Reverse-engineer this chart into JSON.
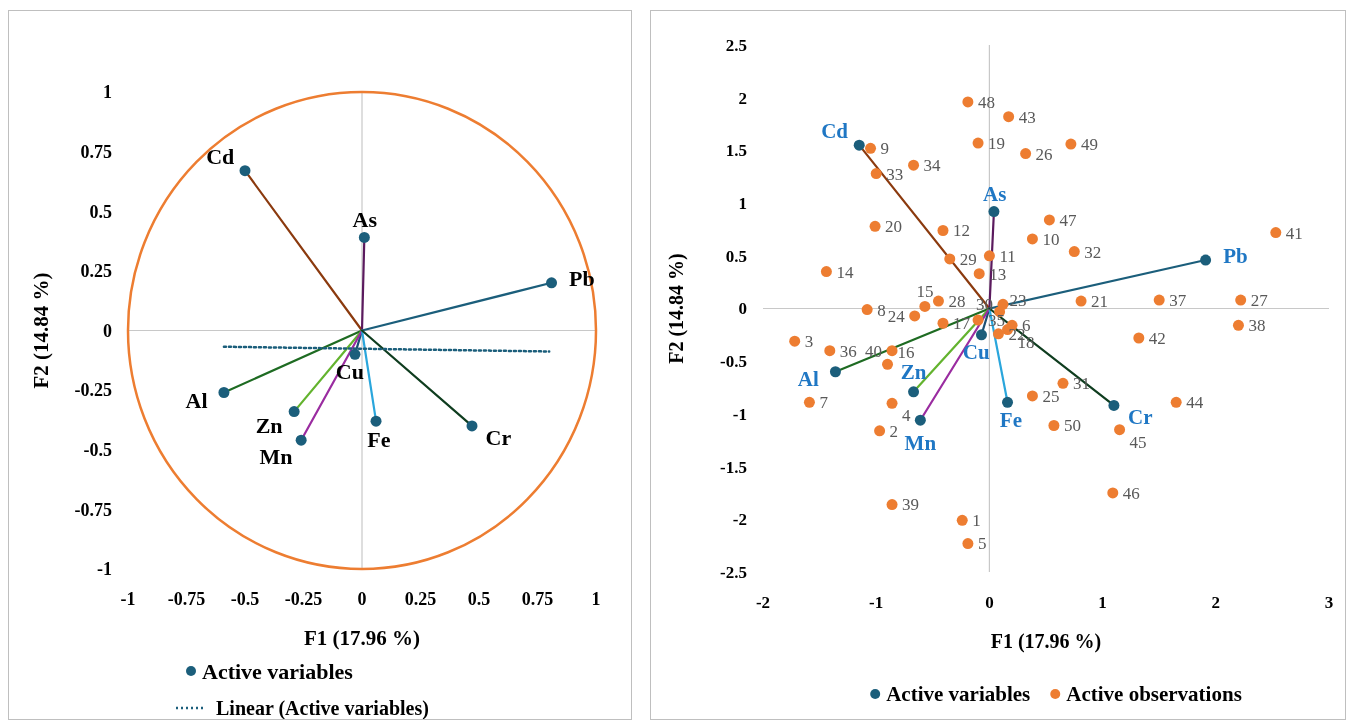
{
  "chart_data": [
    {
      "type": "scatter",
      "xlabel": "F1 (17.96 %)",
      "ylabel": "F2 (14.84 %)",
      "xlim": [
        -1,
        1
      ],
      "ylim": [
        -1,
        1
      ],
      "xticks": [
        -1,
        -0.75,
        -0.5,
        -0.25,
        0,
        0.25,
        0.5,
        0.75,
        1
      ],
      "yticks": [
        -1,
        -0.75,
        -0.5,
        -0.25,
        0,
        0.25,
        0.5,
        0.75,
        1
      ],
      "legend": "bottom left",
      "series": [
        {
          "type": "line",
          "color": "#8b3a0e",
          "x": [
            0,
            -0.5
          ],
          "values": [
            0,
            0.67
          ]
        },
        {
          "type": "line",
          "color": "#5b1a5e",
          "x": [
            0,
            0.01
          ],
          "values": [
            0,
            0.39
          ]
        },
        {
          "type": "line",
          "color": "#1b5e7b",
          "x": [
            0,
            0.81
          ],
          "values": [
            0,
            0.2
          ]
        },
        {
          "type": "line",
          "color": "#1b4f72",
          "x": [
            0,
            -0.03
          ],
          "values": [
            0,
            -0.1
          ]
        },
        {
          "type": "line",
          "color": "#1e6b22",
          "x": [
            0,
            -0.59
          ],
          "values": [
            0,
            -0.26
          ]
        },
        {
          "type": "line",
          "color": "#63b32e",
          "x": [
            0,
            -0.29
          ],
          "values": [
            0,
            -0.34
          ]
        },
        {
          "type": "line",
          "color": "#9a2ca0",
          "x": [
            0,
            -0.26
          ],
          "values": [
            0,
            -0.46
          ]
        },
        {
          "type": "line",
          "color": "#2aa6dc",
          "x": [
            0,
            0.06
          ],
          "values": [
            0,
            -0.38
          ]
        },
        {
          "type": "line",
          "color": "#0f3d1f",
          "x": [
            0,
            0.47
          ],
          "values": [
            0,
            -0.4
          ]
        },
        {
          "name": "Active variables",
          "color": "#1b5e7b",
          "marker": "circle",
          "x": [
            -0.5,
            0.01,
            0.81,
            -0.03,
            -0.59,
            -0.29,
            -0.26,
            0.06,
            0.47
          ],
          "values": [
            0.67,
            0.39,
            0.2,
            -0.1,
            -0.26,
            -0.34,
            -0.46,
            -0.38,
            -0.4
          ]
        },
        {
          "type": "line",
          "name": "Linear (Active variables)",
          "color": "#1b5e7b",
          "line_style": "dotted",
          "x": [
            -0.59,
            0.8
          ],
          "values": [
            -0.068,
            -0.088
          ]
        }
      ],
      "annotations": [
        {
          "text": "Cd",
          "x": -0.5,
          "y": 0.67
        },
        {
          "text": "As",
          "x": 0.01,
          "y": 0.39
        },
        {
          "text": "Pb",
          "x": 0.81,
          "y": 0.2
        },
        {
          "text": "Cu",
          "x": -0.03,
          "y": -0.1
        },
        {
          "text": "Al",
          "x": -0.59,
          "y": -0.26
        },
        {
          "text": "Zn",
          "x": -0.29,
          "y": -0.34
        },
        {
          "text": "Mn",
          "x": -0.26,
          "y": -0.46
        },
        {
          "text": "Fe",
          "x": 0.06,
          "y": -0.38
        },
        {
          "text": "Cr",
          "x": 0.47,
          "y": -0.4
        }
      ]
    },
    {
      "type": "scatter",
      "xlabel": "F1 (17.96 %)",
      "ylabel": "F2 (14.84 %)",
      "xlim": [
        -2,
        3
      ],
      "ylim": [
        -2.5,
        2.5
      ],
      "xticks": [
        -2,
        -1,
        0,
        1,
        2,
        3
      ],
      "yticks": [
        -2.5,
        -2,
        -1.5,
        -1,
        -0.5,
        0,
        0.5,
        1,
        1.5,
        2,
        2.5
      ],
      "legend": "bottom",
      "series": [
        {
          "type": "line",
          "color": "#8b3a0e",
          "x": [
            0,
            -1.15
          ],
          "values": [
            0,
            1.55
          ]
        },
        {
          "type": "line",
          "color": "#5b1a5e",
          "x": [
            0,
            0.04
          ],
          "values": [
            0,
            0.92
          ]
        },
        {
          "type": "line",
          "color": "#1b5e7b",
          "x": [
            0,
            1.91
          ],
          "values": [
            0,
            0.46
          ]
        },
        {
          "type": "line",
          "color": "#1b4f72",
          "x": [
            0,
            -0.07
          ],
          "values": [
            0,
            -0.25
          ]
        },
        {
          "type": "line",
          "color": "#1e6b22",
          "x": [
            0,
            -1.36
          ],
          "values": [
            0,
            -0.6
          ]
        },
        {
          "type": "line",
          "color": "#63b32e",
          "x": [
            0,
            -0.67
          ],
          "values": [
            0,
            -0.79
          ]
        },
        {
          "type": "line",
          "color": "#9a2ca0",
          "x": [
            0,
            -0.61
          ],
          "values": [
            0,
            -1.06
          ]
        },
        {
          "type": "line",
          "color": "#2aa6dc",
          "x": [
            0,
            0.16
          ],
          "values": [
            0,
            -0.89
          ]
        },
        {
          "type": "line",
          "color": "#0f3d1f",
          "x": [
            0,
            1.1
          ],
          "values": [
            0,
            -0.92
          ]
        },
        {
          "name": "Active variables",
          "color": "#1b5e7b",
          "marker": "circle",
          "x": [
            -1.15,
            0.04,
            1.91,
            -0.07,
            -1.36,
            -0.67,
            -0.61,
            0.16,
            1.1
          ],
          "values": [
            1.55,
            0.92,
            0.46,
            -0.25,
            -0.6,
            -0.79,
            -1.06,
            -0.89,
            -0.92
          ]
        },
        {
          "name": "Active observations",
          "color": "#ed7d31",
          "marker": "circle",
          "x": [
            -0.24,
            -0.97,
            -1.72,
            -0.86,
            -0.19,
            0.2,
            -1.59,
            -1.08,
            -1.05,
            0.38,
            0,
            -0.41,
            -0.09,
            -1.44,
            -0.57,
            -0.9,
            -0.41,
            0.16,
            -0.1,
            -1.01,
            0.81,
            0.08,
            0.09,
            -0.66,
            0.38,
            0.32,
            2.22,
            -0.45,
            -0.35,
            0.12,
            0.65,
            0.75,
            -1,
            -0.67,
            -0.1,
            -1.41,
            1.5,
            2.2,
            -0.86,
            -0.86,
            2.53,
            1.32,
            0.17,
            1.65,
            1.15,
            1.09,
            0.53,
            -0.19,
            0.72,
            0.57
          ],
          "values": [
            -2.01,
            -1.16,
            -0.31,
            -0.9,
            -2.23,
            -0.16,
            -0.89,
            -0.01,
            1.52,
            0.66,
            0.5,
            0.74,
            0.33,
            0.35,
            0.02,
            -0.53,
            -0.14,
            -0.2,
            1.57,
            0.78,
            0.07,
            -0.24,
            -0.03,
            -0.07,
            -0.83,
            1.47,
            0.08,
            0.07,
            0.47,
            0.04,
            -0.71,
            0.54,
            1.28,
            1.36,
            -0.11,
            -0.4,
            0.08,
            -0.16,
            -1.86,
            -0.4,
            0.72,
            -0.28,
            1.82,
            -0.89,
            -1.15,
            -1.75,
            0.84,
            1.96,
            1.56,
            -1.11
          ]
        }
      ],
      "annotations": [
        {
          "text": "Cd",
          "x": -1.15,
          "y": 1.55
        },
        {
          "text": "As",
          "x": 0.04,
          "y": 0.92
        },
        {
          "text": "Pb",
          "x": 1.91,
          "y": 0.46
        },
        {
          "text": "Cu",
          "x": -0.07,
          "y": -0.25
        },
        {
          "text": "Al",
          "x": -1.36,
          "y": -0.6
        },
        {
          "text": "Zn",
          "x": -0.67,
          "y": -0.79
        },
        {
          "text": "Mn",
          "x": -0.61,
          "y": -1.06
        },
        {
          "text": "Fe",
          "x": 0.16,
          "y": -0.89
        },
        {
          "text": "Cr",
          "x": 1.1,
          "y": -0.92
        },
        {
          "text": "1",
          "x": -0.24,
          "y": -2.01
        },
        {
          "text": "2",
          "x": -0.97,
          "y": -1.16
        },
        {
          "text": "3",
          "x": -1.72,
          "y": -0.31
        },
        {
          "text": "4",
          "x": -0.86,
          "y": -0.9
        },
        {
          "text": "5",
          "x": -0.19,
          "y": -2.23
        },
        {
          "text": "6",
          "x": 0.2,
          "y": -0.16
        },
        {
          "text": "7",
          "x": -1.59,
          "y": -0.89
        },
        {
          "text": "8",
          "x": -1.08,
          "y": -0.01
        },
        {
          "text": "9",
          "x": -1.05,
          "y": 1.52
        },
        {
          "text": "10",
          "x": 0.38,
          "y": 0.66
        },
        {
          "text": "11",
          "x": 0,
          "y": 0.5
        },
        {
          "text": "12",
          "x": -0.41,
          "y": 0.74
        },
        {
          "text": "13",
          "x": -0.09,
          "y": 0.33
        },
        {
          "text": "14",
          "x": -1.44,
          "y": 0.35
        },
        {
          "text": "15",
          "x": -0.57,
          "y": 0.02
        },
        {
          "text": "16",
          "x": -0.9,
          "y": -0.53
        },
        {
          "text": "17",
          "x": -0.41,
          "y": -0.14
        },
        {
          "text": "18",
          "x": 0.16,
          "y": -0.2
        },
        {
          "text": "19",
          "x": -0.1,
          "y": 1.57
        },
        {
          "text": "20",
          "x": -1.01,
          "y": 0.78
        },
        {
          "text": "21",
          "x": 0.81,
          "y": 0.07
        },
        {
          "text": "22",
          "x": 0.08,
          "y": -0.24
        },
        {
          "text": "23",
          "x": 0.09,
          "y": -0.03
        },
        {
          "text": "24",
          "x": -0.66,
          "y": -0.07
        },
        {
          "text": "25",
          "x": 0.38,
          "y": -0.83
        },
        {
          "text": "26",
          "x": 0.32,
          "y": 1.47
        },
        {
          "text": "27",
          "x": 2.22,
          "y": 0.08
        },
        {
          "text": "28",
          "x": -0.45,
          "y": 0.07
        },
        {
          "text": "29",
          "x": -0.35,
          "y": 0.47
        },
        {
          "text": "30",
          "x": 0.12,
          "y": 0.04
        },
        {
          "text": "31",
          "x": 0.65,
          "y": -0.71
        },
        {
          "text": "32",
          "x": 0.75,
          "y": 0.54
        },
        {
          "text": "33",
          "x": -1,
          "y": 1.28
        },
        {
          "text": "34",
          "x": -0.67,
          "y": 1.36
        },
        {
          "text": "35",
          "x": -0.1,
          "y": -0.11
        },
        {
          "text": "36",
          "x": -1.41,
          "y": -0.4
        },
        {
          "text": "37",
          "x": 1.5,
          "y": 0.08
        },
        {
          "text": "38",
          "x": 2.2,
          "y": -0.16
        },
        {
          "text": "39",
          "x": -0.86,
          "y": -1.86
        },
        {
          "text": "40",
          "x": -0.86,
          "y": -0.4
        },
        {
          "text": "41",
          "x": 2.53,
          "y": 0.72
        },
        {
          "text": "42",
          "x": 1.32,
          "y": -0.28
        },
        {
          "text": "43",
          "x": 0.17,
          "y": 1.82
        },
        {
          "text": "44",
          "x": 1.65,
          "y": -0.89
        },
        {
          "text": "45",
          "x": 1.15,
          "y": -1.15
        },
        {
          "text": "46",
          "x": 1.09,
          "y": -1.75
        },
        {
          "text": "47",
          "x": 0.53,
          "y": 0.84
        },
        {
          "text": "48",
          "x": -0.19,
          "y": 1.96
        },
        {
          "text": "49",
          "x": 0.72,
          "y": 1.56
        },
        {
          "text": "50",
          "x": 0.57,
          "y": -1.11
        }
      ]
    }
  ]
}
